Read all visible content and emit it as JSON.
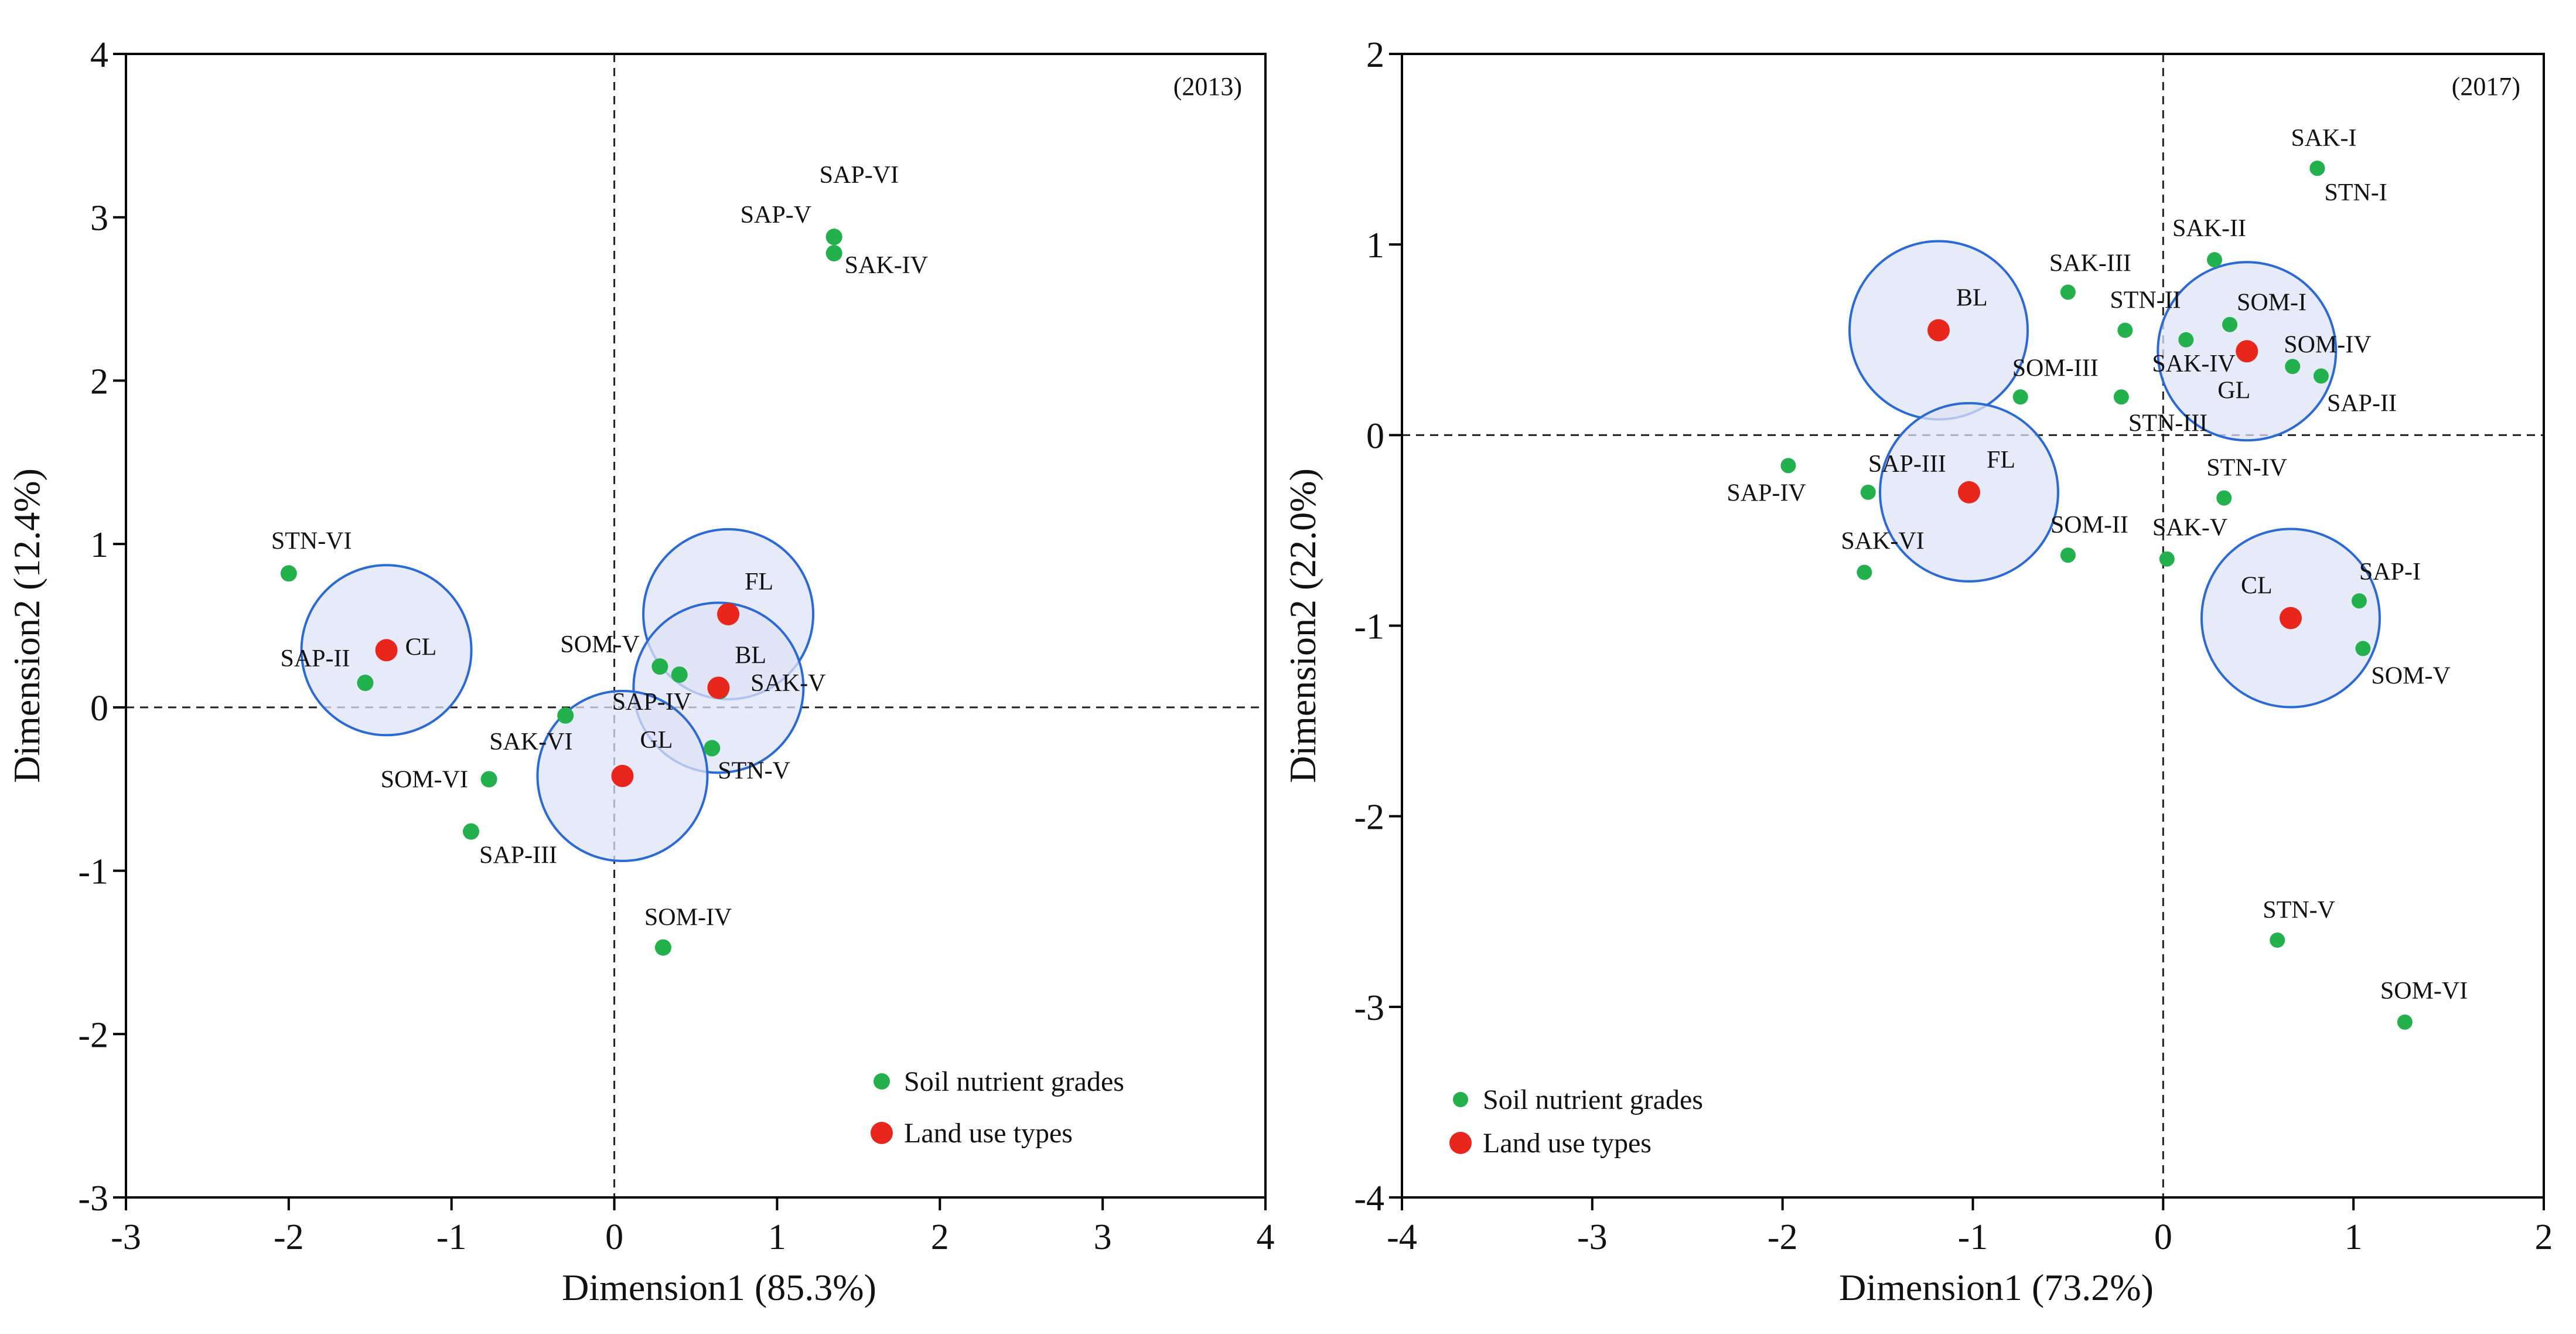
{
  "chart_data": [
    {
      "type": "scatter",
      "year_label": "(2013)",
      "xlabel": "Dimension1 (85.3%)",
      "ylabel": "Dimension2 (12.4%)",
      "xlim": [
        -3,
        4
      ],
      "ylim": [
        -3,
        4
      ],
      "xticks": [
        -3,
        -2,
        -1,
        0,
        1,
        2,
        3,
        4
      ],
      "yticks": [
        -3,
        -2,
        -1,
        0,
        1,
        2,
        3,
        4
      ],
      "xtick_labels": [
        "-3",
        "-2",
        "-1",
        "0",
        "1",
        "2",
        "3",
        "4"
      ],
      "ytick_labels": [
        "-3",
        "-2",
        "-1",
        "0",
        "1",
        "2",
        "3",
        "4"
      ],
      "legend": {
        "position": "bottom-right",
        "entries": [
          "Soil nutrient grades",
          "Land use types"
        ]
      },
      "colors": {
        "nutrient": "#22b14c",
        "landuse": "#e8261c",
        "circle_fill": "#dfe3f6",
        "circle_stroke": "#2a6ad6"
      },
      "series": [
        {
          "name": "Soil nutrient grades",
          "points": [
            {
              "label": "STN-VI",
              "x": -2.0,
              "y": 0.82
            },
            {
              "label": "SAP-II",
              "x": -1.53,
              "y": 0.15
            },
            {
              "label": "SAP-VI",
              "x": 1.35,
              "y": 2.88
            },
            {
              "label": "SAP-V",
              "x": 1.35,
              "y": 2.88
            },
            {
              "label": "SAK-IV",
              "x": 1.35,
              "y": 2.78
            },
            {
              "label": "SOM-V",
              "x": 0.28,
              "y": 0.25
            },
            {
              "label": "SAP-IV",
              "x": 0.4,
              "y": 0.2
            },
            {
              "label": "SAK-V",
              "x": 0.65,
              "y": 0.1
            },
            {
              "label": "SAK-VI",
              "x": -0.3,
              "y": -0.05
            },
            {
              "label": "SOM-VI",
              "x": -0.77,
              "y": -0.44
            },
            {
              "label": "SAP-III",
              "x": -0.88,
              "y": -0.76
            },
            {
              "label": "STN-V",
              "x": 0.6,
              "y": -0.25
            },
            {
              "label": "SOM-IV",
              "x": 0.3,
              "y": -1.47
            }
          ]
        },
        {
          "name": "Land use types",
          "points": [
            {
              "label": "CL",
              "x": -1.4,
              "y": 0.35
            },
            {
              "label": "FL",
              "x": 0.7,
              "y": 0.57
            },
            {
              "label": "BL",
              "x": 0.64,
              "y": 0.12
            },
            {
              "label": "GL",
              "x": 0.05,
              "y": -0.42
            }
          ]
        }
      ]
    },
    {
      "type": "scatter",
      "year_label": "(2017)",
      "xlabel": "Dimension1 (73.2%)",
      "ylabel": "Dimension2 (22.0%)",
      "xlim": [
        -4,
        2
      ],
      "ylim": [
        -4,
        2
      ],
      "xticks": [
        -4,
        -3,
        -2,
        -1,
        0,
        1,
        2
      ],
      "yticks": [
        -4,
        -3,
        -2,
        -1,
        0,
        1,
        2
      ],
      "xtick_labels": [
        "-4",
        "-3",
        "-2",
        "-1",
        "0",
        "1",
        "2"
      ],
      "ytick_labels": [
        "-4",
        "-3",
        "-2",
        "-1",
        "0",
        "1",
        "2"
      ],
      "legend": {
        "position": "bottom-left",
        "entries": [
          "Soil nutrient grades",
          "Land use types"
        ]
      },
      "colors": {
        "nutrient": "#22b14c",
        "landuse": "#e8261c",
        "circle_fill": "#dfe3f6",
        "circle_stroke": "#2a6ad6"
      },
      "series": [
        {
          "name": "Soil nutrient grades",
          "points": [
            {
              "label": "SAK-I",
              "x": 0.81,
              "y": 1.4
            },
            {
              "label": "STN-I",
              "x": 0.81,
              "y": 1.4
            },
            {
              "label": "SAK-II",
              "x": 0.27,
              "y": 0.92
            },
            {
              "label": "SAK-III",
              "x": -0.5,
              "y": 0.75
            },
            {
              "label": "STN-II",
              "x": -0.2,
              "y": 0.55
            },
            {
              "label": "SOM-I",
              "x": 0.35,
              "y": 0.58
            },
            {
              "label": "SAK-IV",
              "x": 0.12,
              "y": 0.5
            },
            {
              "label": "SOM-IV",
              "x": 0.68,
              "y": 0.36
            },
            {
              "label": "SAP-II",
              "x": 0.83,
              "y": 0.31
            },
            {
              "label": "SOM-III",
              "x": -0.75,
              "y": 0.2
            },
            {
              "label": "STN-III",
              "x": -0.22,
              "y": 0.2
            },
            {
              "label": "SAP-IV",
              "x": -1.97,
              "y": -0.16
            },
            {
              "label": "SAP-III",
              "x": -1.55,
              "y": -0.3
            },
            {
              "label": "STN-IV",
              "x": 0.32,
              "y": -0.33
            },
            {
              "label": "SAK-VI",
              "x": -1.57,
              "y": -0.72
            },
            {
              "label": "SOM-II",
              "x": -0.5,
              "y": -0.63
            },
            {
              "label": "SAK-V",
              "x": 0.02,
              "y": -0.65
            },
            {
              "label": "SAP-I",
              "x": 1.03,
              "y": -0.87
            },
            {
              "label": "SOM-V",
              "x": 1.05,
              "y": -1.12
            },
            {
              "label": "STN-V",
              "x": 0.6,
              "y": -2.65
            },
            {
              "label": "SOM-VI",
              "x": 1.27,
              "y": -3.08
            }
          ]
        },
        {
          "name": "Land use types",
          "points": [
            {
              "label": "BL",
              "x": -1.18,
              "y": 0.55
            },
            {
              "label": "GL",
              "x": 0.44,
              "y": 0.44
            },
            {
              "label": "FL",
              "x": -1.02,
              "y": -0.3
            },
            {
              "label": "CL",
              "x": 0.67,
              "y": -0.96
            }
          ]
        }
      ]
    }
  ]
}
